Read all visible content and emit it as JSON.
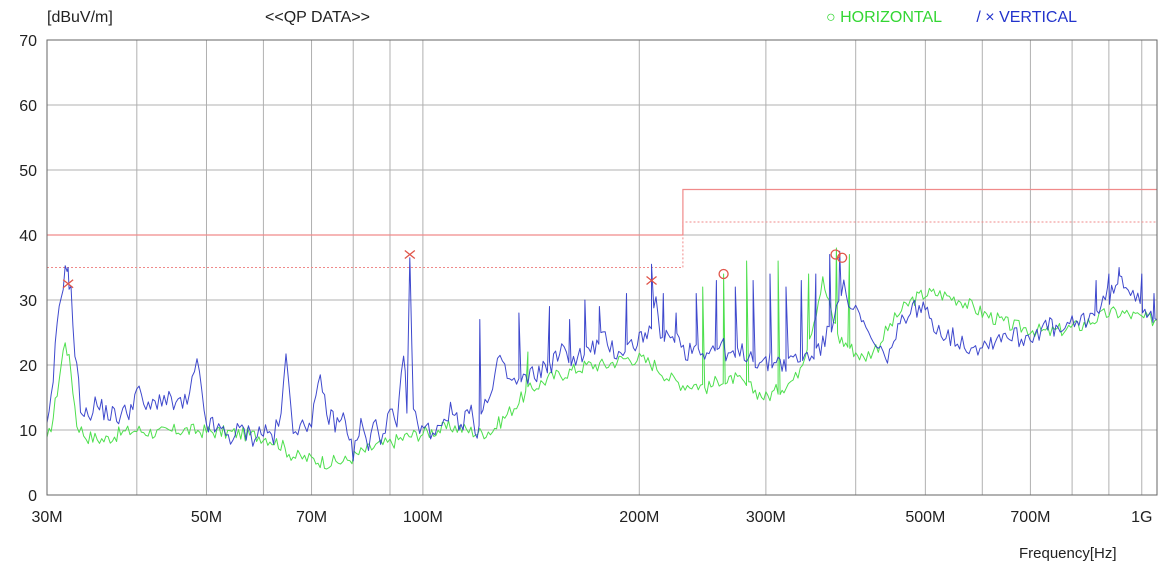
{
  "header": {
    "unit_label": "[dBuV/m]",
    "title": "<<QP DATA>>",
    "legend_h_symbol": "○",
    "legend_h_label": "HORIZONTAL",
    "legend_sep": "/",
    "legend_v_symbol": "×",
    "legend_v_label": "VERTICAL",
    "xlabel": "Frequency[Hz]"
  },
  "chart_data": {
    "type": "line",
    "title": "<<QP DATA>>",
    "xlabel": "Frequency[Hz]",
    "ylabel": "[dBuV/m]",
    "x_scale": "log",
    "xlim": [
      30,
      1050
    ],
    "ylim": [
      0,
      70
    ],
    "y_ticks": [
      0,
      10,
      20,
      30,
      40,
      50,
      60,
      70
    ],
    "x_ticks": [
      30,
      40,
      50,
      60,
      70,
      80,
      90,
      100,
      200,
      300,
      400,
      500,
      600,
      700,
      800,
      900,
      1000
    ],
    "x_tick_labels": [
      {
        "value": 30,
        "label": "30M"
      },
      {
        "value": 50,
        "label": "50M"
      },
      {
        "value": 70,
        "label": "70M"
      },
      {
        "value": 100,
        "label": "100M"
      },
      {
        "value": 200,
        "label": "200M"
      },
      {
        "value": 300,
        "label": "300M"
      },
      {
        "value": 500,
        "label": "500M"
      },
      {
        "value": 700,
        "label": "700M"
      },
      {
        "value": 1000,
        "label": "1G"
      }
    ],
    "grid": true,
    "legend_position": "top-right",
    "colors": {
      "horizontal": "#44dd44",
      "vertical": "#2a35c8",
      "limit": "#f08a8a",
      "marker": "#e0554a",
      "grid": "#b0b0b0"
    },
    "limit_line": {
      "x": [
        30,
        230,
        230,
        1050
      ],
      "y": [
        40,
        40,
        47,
        47
      ]
    },
    "margin_line": {
      "x": [
        30,
        230,
        230,
        1050
      ],
      "y": [
        35,
        35,
        42,
        42
      ]
    },
    "series": [
      {
        "name": "HORIZONTAL",
        "x": [
          30,
          30.6,
          31.2,
          31.8,
          32.4,
          33,
          34,
          36,
          38,
          40,
          43,
          46,
          50,
          55,
          60,
          63,
          66,
          70,
          74,
          78,
          82,
          86,
          90,
          95,
          100,
          105,
          110,
          115,
          120,
          125,
          130,
          135,
          140,
          150,
          160,
          170,
          180,
          190,
          200,
          210,
          215,
          220,
          230,
          240,
          250,
          260,
          265,
          270,
          280,
          290,
          300,
          310,
          320,
          330,
          340,
          350,
          360,
          370,
          380,
          390,
          400,
          410,
          420,
          430,
          440,
          460,
          480,
          500,
          520,
          540,
          560,
          580,
          600,
          630,
          660,
          700,
          740,
          780,
          820,
          860,
          900,
          940,
          980,
          1020,
          1050
        ],
        "y": [
          8,
          12,
          18,
          24,
          19,
          11,
          9,
          8.5,
          9.5,
          10,
          9.5,
          10,
          9.8,
          9.5,
          9,
          8,
          6,
          5.5,
          5,
          5.2,
          6.5,
          7.5,
          8,
          9,
          9.5,
          10,
          10.5,
          10,
          9.5,
          10,
          12,
          14,
          16,
          18,
          19,
          20,
          20,
          21,
          21,
          20,
          19,
          18,
          17,
          17,
          16.5,
          18,
          17,
          18,
          17,
          16,
          15,
          16,
          17,
          18,
          22,
          27,
          33,
          28,
          24,
          23,
          22,
          21,
          22,
          23,
          25,
          28,
          30,
          31,
          31,
          30.5,
          30,
          29,
          28,
          27,
          26,
          25.5,
          25,
          25.5,
          26,
          27,
          28,
          28,
          27.5,
          27,
          27
        ]
      },
      {
        "name": "VERTICAL",
        "x": [
          30,
          30.4,
          30.8,
          31.2,
          31.6,
          32.0,
          32.4,
          32.8,
          33.4,
          34,
          35,
          36,
          37.5,
          39,
          40,
          41.5,
          43,
          45,
          47,
          48.5,
          50,
          52,
          54,
          56,
          58,
          60,
          62,
          63.5,
          64.5,
          66,
          68,
          70,
          72,
          74,
          76,
          78,
          80,
          82,
          84,
          86,
          88,
          90,
          92,
          94,
          95,
          96,
          97,
          99,
          101,
          104,
          107,
          110,
          113,
          116,
          119,
          122,
          125,
          128,
          131,
          135,
          140,
          145,
          150,
          156,
          162,
          170,
          178,
          186,
          195,
          200,
          205,
          208,
          211,
          214,
          218,
          224,
          232,
          240,
          250,
          260,
          270,
          280,
          290,
          300,
          310,
          320,
          330,
          340,
          350,
          360,
          370,
          376,
          382,
          388,
          394,
          400,
          410,
          420,
          430,
          440,
          455,
          470,
          490,
          510,
          530,
          550,
          575,
          600,
          625,
          650,
          680,
          710,
          740,
          770,
          800,
          830,
          860,
          890,
          920,
          950,
          980,
          1010,
          1050
        ],
        "y": [
          10,
          14,
          22,
          29,
          33,
          35,
          31,
          22,
          14,
          12,
          14,
          13,
          12,
          13,
          16,
          13,
          15,
          14,
          14,
          20,
          11,
          10,
          9,
          10,
          9,
          10,
          9,
          12,
          21,
          11,
          10,
          12,
          17,
          12,
          11,
          12,
          6,
          11,
          7,
          12,
          8,
          13,
          10,
          21,
          14,
          35,
          12,
          11,
          10,
          10,
          12,
          13,
          11,
          13,
          10,
          14,
          15,
          22,
          18,
          17,
          18,
          19,
          20,
          22,
          21,
          22,
          24,
          22,
          23,
          24,
          25,
          24,
          32,
          23,
          24,
          25,
          22,
          23,
          22,
          23,
          21,
          22,
          21,
          20,
          21,
          20,
          21,
          21,
          22,
          23,
          26,
          30,
          32,
          31,
          29,
          28,
          26,
          24,
          22,
          21,
          24,
          28,
          29,
          27,
          25,
          24,
          23,
          23,
          24,
          25,
          24,
          25,
          26,
          25,
          26,
          27,
          28,
          30,
          32,
          33,
          31,
          29,
          27
        ]
      }
    ],
    "spikes": [
      {
        "series": "VERTICAL",
        "x": 32.1,
        "y": 35
      },
      {
        "series": "VERTICAL",
        "x": 95.9,
        "y": 36.5
      },
      {
        "series": "VERTICAL",
        "x": 120,
        "y": 27
      },
      {
        "series": "VERTICAL",
        "x": 136,
        "y": 28
      },
      {
        "series": "VERTICAL",
        "x": 150,
        "y": 29
      },
      {
        "series": "VERTICAL",
        "x": 160,
        "y": 27
      },
      {
        "series": "VERTICAL",
        "x": 168,
        "y": 30
      },
      {
        "series": "VERTICAL",
        "x": 176,
        "y": 29
      },
      {
        "series": "VERTICAL",
        "x": 192,
        "y": 31
      },
      {
        "series": "VERTICAL",
        "x": 208,
        "y": 35.5
      },
      {
        "series": "VERTICAL",
        "x": 216,
        "y": 31
      },
      {
        "series": "VERTICAL",
        "x": 225,
        "y": 28
      },
      {
        "series": "VERTICAL",
        "x": 240,
        "y": 31
      },
      {
        "series": "VERTICAL",
        "x": 256,
        "y": 33
      },
      {
        "series": "VERTICAL",
        "x": 272,
        "y": 32
      },
      {
        "series": "VERTICAL",
        "x": 288,
        "y": 33
      },
      {
        "series": "VERTICAL",
        "x": 304,
        "y": 34
      },
      {
        "series": "VERTICAL",
        "x": 320,
        "y": 32
      },
      {
        "series": "VERTICAL",
        "x": 336,
        "y": 33
      },
      {
        "series": "VERTICAL",
        "x": 352,
        "y": 34
      },
      {
        "series": "VERTICAL",
        "x": 368,
        "y": 37
      },
      {
        "series": "VERTICAL",
        "x": 380,
        "y": 37.5
      },
      {
        "series": "VERTICAL",
        "x": 864,
        "y": 33
      },
      {
        "series": "VERTICAL",
        "x": 900,
        "y": 34
      },
      {
        "series": "VERTICAL",
        "x": 930,
        "y": 35
      },
      {
        "series": "VERTICAL",
        "x": 1000,
        "y": 34
      },
      {
        "series": "VERTICAL",
        "x": 1040,
        "y": 31
      },
      {
        "series": "HORIZONTAL",
        "x": 140,
        "y": 22
      },
      {
        "series": "HORIZONTAL",
        "x": 245,
        "y": 32
      },
      {
        "series": "HORIZONTAL",
        "x": 262,
        "y": 34
      },
      {
        "series": "HORIZONTAL",
        "x": 282,
        "y": 36
      },
      {
        "series": "HORIZONTAL",
        "x": 312,
        "y": 36
      },
      {
        "series": "HORIZONTAL",
        "x": 344,
        "y": 34
      },
      {
        "series": "HORIZONTAL",
        "x": 376,
        "y": 38
      },
      {
        "series": "HORIZONTAL",
        "x": 392,
        "y": 37
      }
    ],
    "markers": [
      {
        "type": "x",
        "series": "VERTICAL",
        "x": 32.1,
        "y": 32.5
      },
      {
        "type": "x",
        "series": "VERTICAL",
        "x": 95.9,
        "y": 37
      },
      {
        "type": "x",
        "series": "VERTICAL",
        "x": 208,
        "y": 33
      },
      {
        "type": "o",
        "series": "HORIZONTAL",
        "x": 262,
        "y": 34
      },
      {
        "type": "o",
        "series": "HORIZONTAL",
        "x": 375,
        "y": 37
      },
      {
        "type": "o",
        "series": "HORIZONTAL",
        "x": 383,
        "y": 36.5
      }
    ]
  }
}
